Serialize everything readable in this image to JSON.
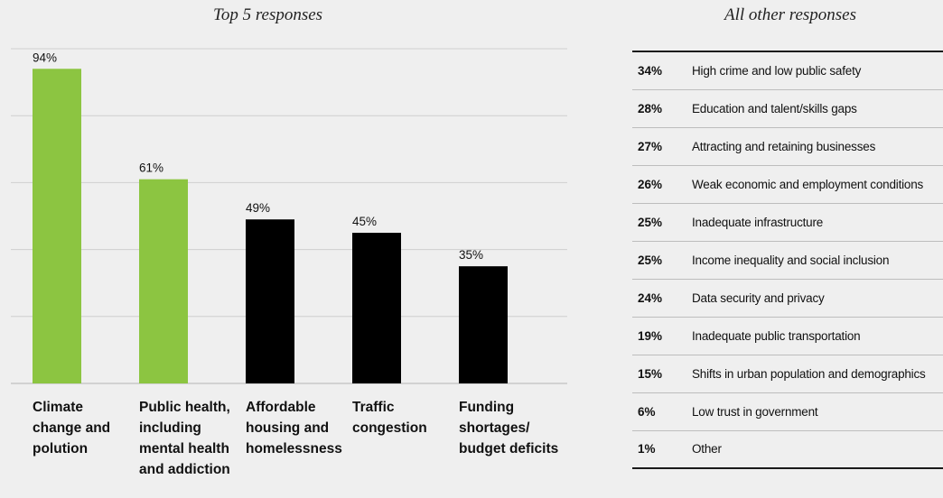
{
  "chart_data": [
    {
      "type": "bar",
      "title": "Top 5 responses",
      "categories": [
        "Climate\nchange and\npolution",
        "Public health,\nincluding\nmental health\nand addiction",
        "Affordable\nhousing and\nhomelessness",
        "Traffic\ncongestion",
        "Funding\nshortages/\nbudget deficits"
      ],
      "values": [
        94,
        61,
        49,
        45,
        35
      ],
      "value_labels": [
        "94%",
        "61%",
        "49%",
        "45%",
        "35%"
      ],
      "bar_colors": [
        "#8cc541",
        "#8cc541",
        "#000000",
        "#000000",
        "#000000"
      ],
      "ylim": [
        0,
        100
      ],
      "grid": true,
      "xlabel": "",
      "ylabel": ""
    },
    {
      "type": "table",
      "title": "All other responses",
      "rows": [
        {
          "value": "34%",
          "label": "High crime and low public safety"
        },
        {
          "value": "28%",
          "label": "Education and talent/skills gaps"
        },
        {
          "value": "27%",
          "label": "Attracting and retaining businesses"
        },
        {
          "value": "26%",
          "label": "Weak economic and employment conditions"
        },
        {
          "value": "25%",
          "label": "Inadequate infrastructure"
        },
        {
          "value": "25%",
          "label": "Income inequality and social inclusion"
        },
        {
          "value": "24%",
          "label": "Data security and privacy"
        },
        {
          "value": "19%",
          "label": "Inadequate public transportation"
        },
        {
          "value": "15%",
          "label": "Shifts in urban population and demographics"
        },
        {
          "value": "6%",
          "label": "Low trust in government"
        },
        {
          "value": "1%",
          "label": "Other"
        }
      ]
    }
  ]
}
